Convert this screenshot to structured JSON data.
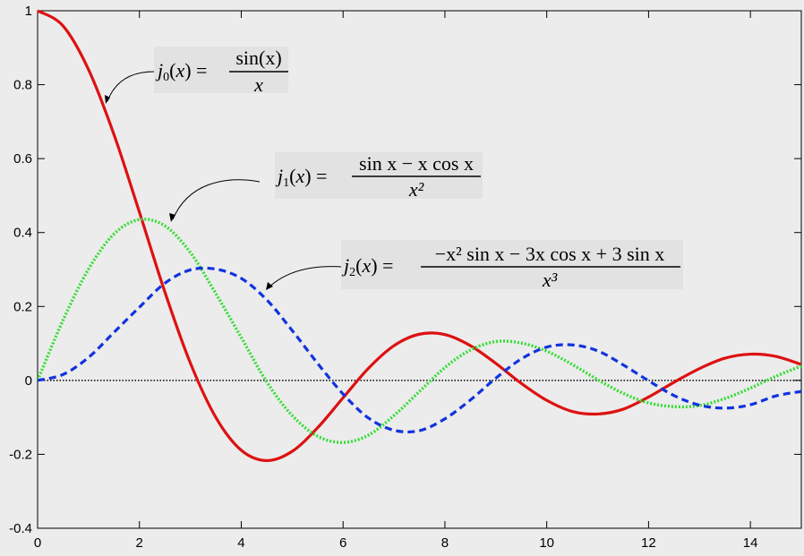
{
  "chart_data": {
    "type": "line",
    "title": "",
    "xlabel": "",
    "ylabel": "",
    "xlim": [
      0,
      15
    ],
    "ylim": [
      -0.4,
      1
    ],
    "grid": false,
    "xticks": [
      "0",
      "2",
      "4",
      "6",
      "8",
      "10",
      "12",
      "14"
    ],
    "yticks": [
      "-0.4",
      "-0.2",
      "0",
      "0.2",
      "0.4",
      "0.6",
      "0.8",
      "1"
    ],
    "zero_line": {
      "y": 0,
      "style": "dotted",
      "color": "#000000"
    },
    "series": [
      {
        "color": "#dd1111",
        "style": "solid",
        "x": [
          0,
          0.5,
          1,
          1.5,
          2,
          2.5,
          3,
          3.5,
          4,
          4.5,
          5,
          5.5,
          6,
          6.5,
          7,
          7.5,
          8,
          8.5,
          9,
          9.5,
          10,
          10.5,
          11,
          11.5,
          12,
          12.5,
          13,
          13.5,
          14,
          14.5,
          15
        ],
        "y": [
          1,
          0.959,
          0.841,
          0.665,
          0.455,
          0.239,
          0.047,
          -0.1,
          -0.189,
          -0.217,
          -0.192,
          -0.128,
          -0.047,
          0.033,
          0.094,
          0.125,
          0.124,
          0.094,
          0.046,
          -0.008,
          -0.054,
          -0.084,
          -0.091,
          -0.078,
          -0.045,
          -0.005,
          0.032,
          0.06,
          0.071,
          0.065,
          0.043
        ]
      },
      {
        "color": "#33dd33",
        "style": "dotted",
        "x": [
          0,
          0.5,
          1,
          1.5,
          2,
          2.5,
          3,
          3.5,
          4,
          4.5,
          5,
          5.5,
          6,
          6.5,
          7,
          7.5,
          8,
          8.5,
          9,
          9.5,
          10,
          10.5,
          11,
          11.5,
          12,
          12.5,
          13,
          13.5,
          14,
          14.5,
          15
        ],
        "y": [
          0,
          0.163,
          0.301,
          0.396,
          0.435,
          0.418,
          0.346,
          0.235,
          0.116,
          -0.004,
          -0.095,
          -0.151,
          -0.168,
          -0.148,
          -0.095,
          -0.03,
          0.035,
          0.082,
          0.105,
          0.101,
          0.079,
          0.043,
          0.002,
          -0.035,
          -0.061,
          -0.071,
          -0.068,
          -0.049,
          -0.021,
          0.011,
          0.039
        ]
      },
      {
        "color": "#1133dd",
        "style": "dashed",
        "x": [
          0,
          0.5,
          1,
          1.5,
          2,
          2.5,
          3,
          3.5,
          4,
          4.5,
          5,
          5.5,
          6,
          6.5,
          7,
          7.5,
          8,
          8.5,
          9,
          9.5,
          10,
          10.5,
          11,
          11.5,
          12,
          12.5,
          13,
          13.5,
          14,
          14.5,
          15
        ],
        "y": [
          0,
          0.016,
          0.062,
          0.13,
          0.198,
          0.263,
          0.299,
          0.301,
          0.276,
          0.218,
          0.135,
          0.046,
          -0.037,
          -0.102,
          -0.135,
          -0.136,
          -0.104,
          -0.053,
          0.006,
          0.058,
          0.09,
          0.096,
          0.08,
          0.042,
          -0.001,
          -0.041,
          -0.067,
          -0.075,
          -0.066,
          -0.042,
          -0.03
        ]
      }
    ],
    "annotations": [
      {
        "lhs_fn": "j",
        "lhs_sub": "0",
        "lhs_arg": "x",
        "eq": "=",
        "numerator": "sin(x)",
        "denominator": "x",
        "target": [
          1.3,
          0.76
        ]
      },
      {
        "lhs_fn": "j",
        "lhs_sub": "1",
        "lhs_arg": "x",
        "eq": "=",
        "numerator": "sin x − x cos x",
        "denominator": "x²",
        "target": [
          2.6,
          0.43
        ]
      },
      {
        "lhs_fn": "j",
        "lhs_sub": "2",
        "lhs_arg": "x",
        "eq": "=",
        "numerator": "−x² sin x − 3x cos x + 3 sin x",
        "denominator": "x³",
        "target": [
          4.6,
          0.245
        ]
      }
    ]
  },
  "colors": {
    "background": "#ececec",
    "annotation_box": "#e2e2e2",
    "axis": "#000000"
  }
}
